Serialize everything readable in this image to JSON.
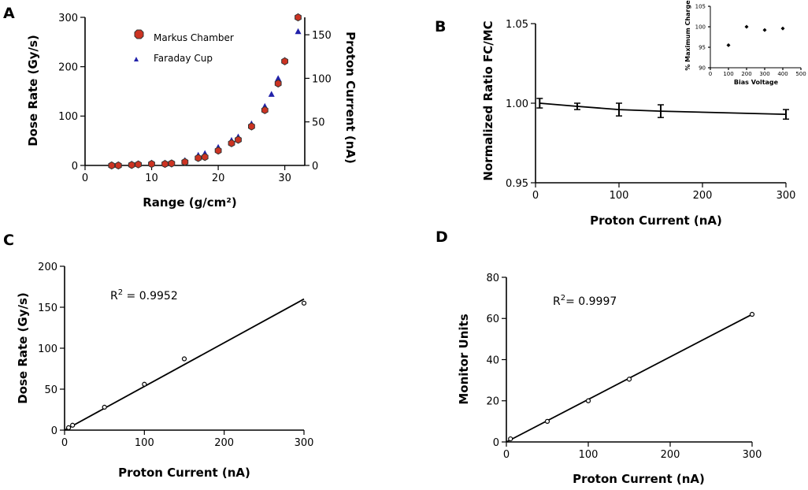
{
  "chart_data": [
    {
      "panel": "A",
      "type": "scatter",
      "xlabel": "Range (g/cm²)",
      "ylabel": "Dose Rate (Gy/s)",
      "y2label": "Proton Current (nA)",
      "xlim": [
        0,
        33
      ],
      "ylim": [
        0,
        300
      ],
      "y2lim": [
        0,
        170
      ],
      "xticks": [
        0,
        10,
        20,
        30
      ],
      "yticks": [
        0,
        100,
        200,
        300
      ],
      "y2ticks": [
        0,
        50,
        100,
        150
      ],
      "legend_position": "top-left",
      "colors": {
        "markus": "#cc3322",
        "faraday": "#2222aa"
      },
      "series": [
        {
          "name": "Markus Chamber",
          "axis": "left",
          "marker": "hexagon",
          "x": [
            4,
            5,
            7,
            8,
            10,
            12,
            13,
            15,
            17,
            18,
            20,
            22,
            23,
            25,
            27,
            29,
            30,
            32
          ],
          "y": [
            0,
            0,
            1,
            2,
            3,
            3,
            4,
            7,
            15,
            17,
            30,
            45,
            52,
            79,
            112,
            166,
            211,
            300
          ]
        },
        {
          "name": "Faraday Cup",
          "axis": "right",
          "marker": "triangle",
          "x": [
            7,
            8,
            10,
            12,
            13,
            15,
            17,
            18,
            20,
            22,
            23,
            25,
            27,
            28,
            29,
            30,
            32
          ],
          "y": [
            2,
            2,
            3,
            3,
            3,
            6,
            12,
            14,
            21,
            29,
            33,
            48,
            68,
            82,
            100,
            121,
            154
          ]
        }
      ]
    },
    {
      "panel": "B",
      "type": "line",
      "xlabel": "Proton Current (nA)",
      "ylabel": "Normalized Ratio FC/MC",
      "xlim": [
        0,
        300
      ],
      "ylim": [
        0.95,
        1.05
      ],
      "xticks": [
        0,
        100,
        200,
        300
      ],
      "yticks": [
        0.95,
        1.0,
        1.05
      ],
      "x": [
        5,
        50,
        100,
        150,
        300
      ],
      "y": [
        1.0,
        0.998,
        0.996,
        0.995,
        0.993
      ],
      "yerr": [
        0.003,
        0.002,
        0.004,
        0.004,
        0.003
      ],
      "inset": {
        "type": "scatter",
        "xlabel": "Bias Voltage",
        "ylabel": "% Maximum Charge",
        "xlim": [
          0,
          500
        ],
        "ylim": [
          90,
          105
        ],
        "xticks": [
          0,
          100,
          200,
          300,
          400,
          500
        ],
        "yticks": [
          90,
          95,
          100,
          105
        ],
        "x": [
          100,
          200,
          300,
          400
        ],
        "y": [
          95.5,
          100,
          99.2,
          99.6
        ]
      }
    },
    {
      "panel": "C",
      "type": "scatter",
      "xlabel": "Proton Current (nA)",
      "ylabel": "Dose Rate (Gy/s)",
      "xlim": [
        0,
        300
      ],
      "ylim": [
        0,
        200
      ],
      "xticks": [
        0,
        100,
        200,
        300
      ],
      "yticks": [
        0,
        50,
        100,
        150,
        200
      ],
      "annotation_main": "R",
      "annotation_sup": "2",
      "annotation_rest": " = 0.9952",
      "x": [
        5,
        10,
        50,
        100,
        150,
        300
      ],
      "y": [
        3,
        6,
        28,
        56,
        87,
        155
      ],
      "fit": {
        "x": [
          0,
          300
        ],
        "y": [
          0,
          160
        ]
      }
    },
    {
      "panel": "D",
      "type": "scatter",
      "xlabel": "Proton Current (nA)",
      "ylabel": "Monitor Units",
      "xlim": [
        0,
        300
      ],
      "ylim": [
        0,
        80
      ],
      "xticks": [
        0,
        100,
        200,
        300
      ],
      "yticks": [
        0,
        20,
        40,
        60,
        80
      ],
      "annotation_main": "R",
      "annotation_sup": "2",
      "annotation_rest": "= 0.9997",
      "x": [
        5,
        50,
        100,
        150,
        300
      ],
      "y": [
        1.5,
        10,
        20,
        30.5,
        62
      ],
      "yerr": [
        0,
        0,
        0,
        1.2,
        0
      ],
      "fit": {
        "x": [
          0,
          300
        ],
        "y": [
          0,
          62
        ]
      }
    }
  ]
}
